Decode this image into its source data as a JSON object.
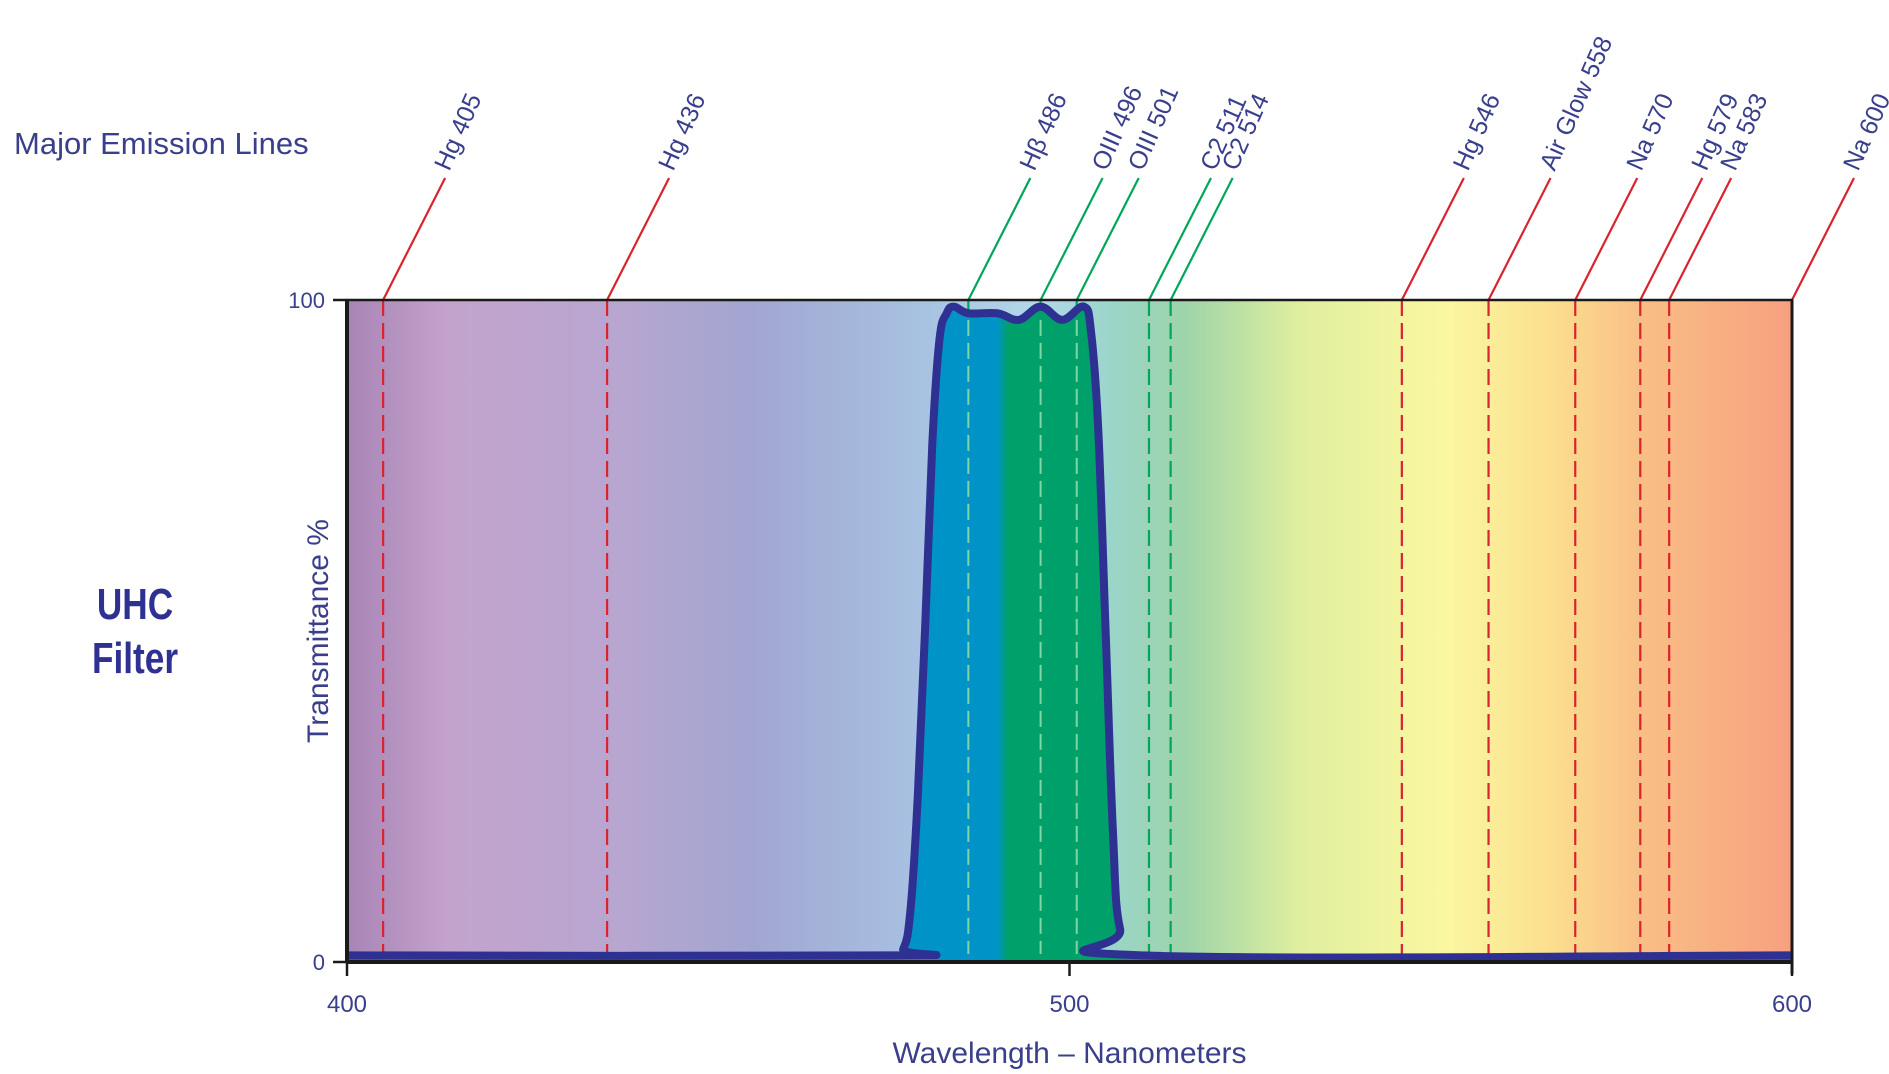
{
  "chart_data": {
    "type": "area",
    "title_left": "Major Emission Lines",
    "filter_name_lines": [
      "UHC",
      "Filter"
    ],
    "ylabel": "Transmittance %",
    "xlabel": "Wavelength – Nanometers",
    "xlim": [
      400,
      600
    ],
    "ylim": [
      0,
      100
    ],
    "x_ticks": [
      400,
      500,
      600
    ],
    "y_ticks": [
      0,
      100
    ],
    "x_tick_labels": [
      "400",
      "500",
      "600"
    ],
    "y_tick_labels": [
      "0",
      "100"
    ],
    "grid": false,
    "series": [
      {
        "x": [
          400,
          475,
          477,
          478,
          479,
          480,
          481,
          482,
          483,
          484,
          486,
          490,
          493,
          496,
          499,
          502,
          503,
          504,
          505,
          506,
          507,
          510,
          600
        ],
        "values": [
          1,
          1,
          2,
          8,
          25,
          50,
          78,
          94,
          98,
          99,
          98,
          98,
          97,
          99,
          97,
          99,
          95,
          80,
          50,
          20,
          5,
          1,
          1
        ]
      }
    ],
    "emission_lines": [
      {
        "label": "Hg 405",
        "wavelength": 405,
        "color": "#d9232e"
      },
      {
        "label": "Hg 436",
        "wavelength": 436,
        "color": "#d9232e"
      },
      {
        "label": "Hβ 486",
        "wavelength": 486,
        "color": "#00a65a"
      },
      {
        "label": "OIII 496",
        "wavelength": 496,
        "color": "#00a65a"
      },
      {
        "label": "OIII 501",
        "wavelength": 501,
        "color": "#00a65a"
      },
      {
        "label": "C2 511",
        "wavelength": 511,
        "color": "#00a65a"
      },
      {
        "label": "C2 514",
        "wavelength": 514,
        "color": "#00a65a"
      },
      {
        "label": "Hg 546",
        "wavelength": 546,
        "color": "#d9232e"
      },
      {
        "label": "Air Glow 558",
        "wavelength": 558,
        "color": "#d9232e"
      },
      {
        "label": "Na 570",
        "wavelength": 570,
        "color": "#d9232e"
      },
      {
        "label": "Hg 579",
        "wavelength": 579,
        "color": "#d9232e"
      },
      {
        "label": "Na 583",
        "wavelength": 583,
        "color": "#d9232e"
      },
      {
        "label": "Na 600",
        "wavelength": 600,
        "color": "#d9232e"
      }
    ],
    "colors": {
      "text": "#3a3f8c",
      "filter_curve": "#2e3192",
      "filter_fill": "#0093c8",
      "filter_fill_green": "#00a06a"
    }
  }
}
